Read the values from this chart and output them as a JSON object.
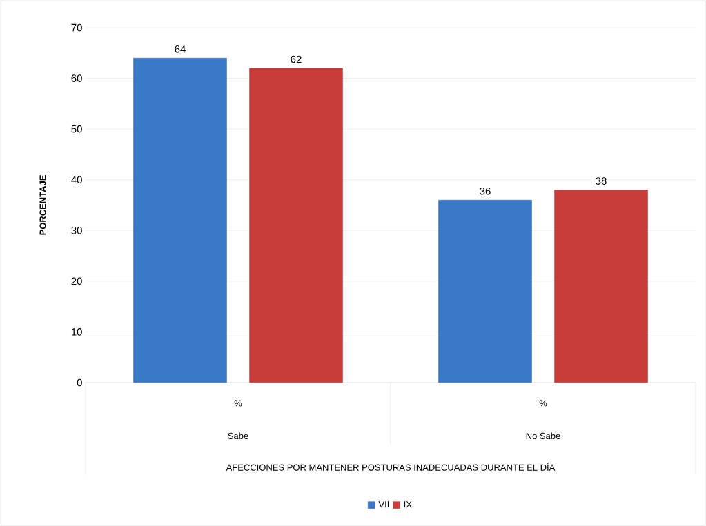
{
  "chart_data": {
    "type": "bar",
    "xlabel": "AFECCIONES POR MANTENER POSTURAS INADECUADAS DURANTE EL DÍA",
    "ylabel": "PORCENTAJE",
    "categories": [
      "Sabe",
      "No Sabe"
    ],
    "series": [
      {
        "name": "VII",
        "color": "#3a78c8",
        "values": [
          64,
          36
        ]
      },
      {
        "name": "IX",
        "color": "#c83c3a",
        "values": [
          62,
          38
        ]
      }
    ],
    "ylim": [
      0,
      70
    ],
    "yticks": [
      0,
      10,
      20,
      30,
      40,
      50,
      60,
      70
    ],
    "grid": "y",
    "legend": "bottom",
    "data_labels": true,
    "annotations": [
      "%",
      "%"
    ]
  }
}
